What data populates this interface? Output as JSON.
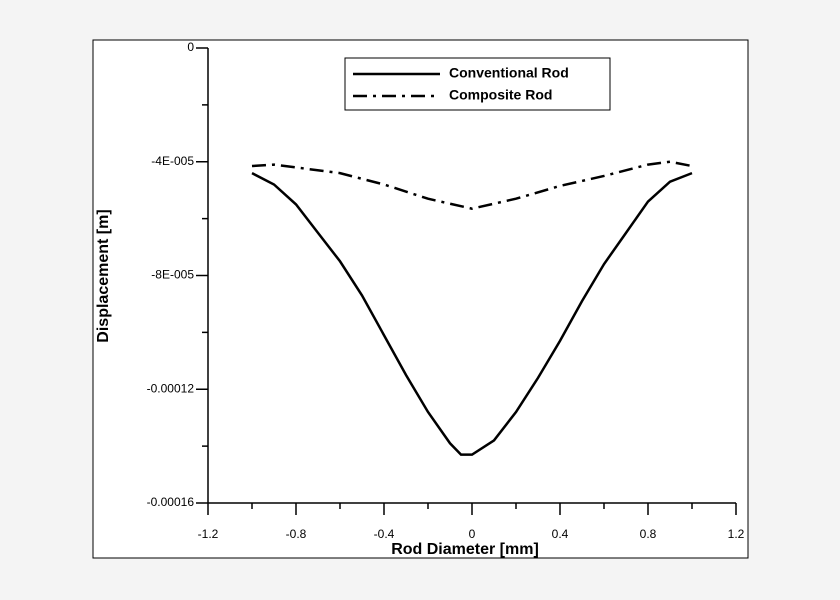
{
  "chart_data": {
    "type": "line",
    "xlabel": "Rod Diameter [mm]",
    "ylabel": "Displacement [m]",
    "xlim": [
      -1.2,
      1.2
    ],
    "xticks": [
      -1.2,
      -0.8,
      -0.4,
      0,
      0.4,
      0.8,
      1.2
    ],
    "xminorticks": [
      -1.0,
      -0.6,
      -0.2,
      0.2,
      0.6,
      1.0
    ],
    "ylim": [
      -0.00016,
      0
    ],
    "yticks": [
      {
        "value": 0,
        "label": "0"
      },
      {
        "value": -4e-05,
        "label": "-4E-005"
      },
      {
        "value": -8e-05,
        "label": "-8E-005"
      },
      {
        "value": -0.00012,
        "label": "-0.00012"
      },
      {
        "value": -0.00016,
        "label": "-0.00016"
      }
    ],
    "yminorticks": [
      -2e-05,
      -6e-05,
      -0.0001,
      -0.00014
    ],
    "legend": "top-center",
    "series": [
      {
        "name": "Conventional Rod",
        "color": "#000000",
        "dash": "solid",
        "x": [
          -1.0,
          -0.9,
          -0.8,
          -0.7,
          -0.6,
          -0.5,
          -0.4,
          -0.3,
          -0.2,
          -0.1,
          -0.05,
          0,
          0.1,
          0.2,
          0.3,
          0.4,
          0.5,
          0.6,
          0.7,
          0.8,
          0.9,
          1.0
        ],
        "values": [
          -4.4e-05,
          -4.8e-05,
          -5.5e-05,
          -6.5e-05,
          -7.5e-05,
          -8.7e-05,
          -0.000101,
          -0.000115,
          -0.000128,
          -0.000139,
          -0.000143,
          -0.000143,
          -0.000138,
          -0.000128,
          -0.000116,
          -0.000103,
          -8.9e-05,
          -7.6e-05,
          -6.5e-05,
          -5.4e-05,
          -4.7e-05,
          -4.4e-05
        ]
      },
      {
        "name": "Composite Rod",
        "color": "#000000",
        "dash": "dash-dot",
        "x": [
          -1.0,
          -0.9,
          -0.8,
          -0.6,
          -0.4,
          -0.2,
          0,
          0.2,
          0.4,
          0.6,
          0.8,
          0.9,
          1.0
        ],
        "values": [
          -4.15e-05,
          -4.1e-05,
          -4.2e-05,
          -4.4e-05,
          -4.8e-05,
          -5.3e-05,
          -5.65e-05,
          -5.3e-05,
          -4.85e-05,
          -4.5e-05,
          -4.1e-05,
          -4e-05,
          -4.15e-05
        ]
      }
    ]
  }
}
